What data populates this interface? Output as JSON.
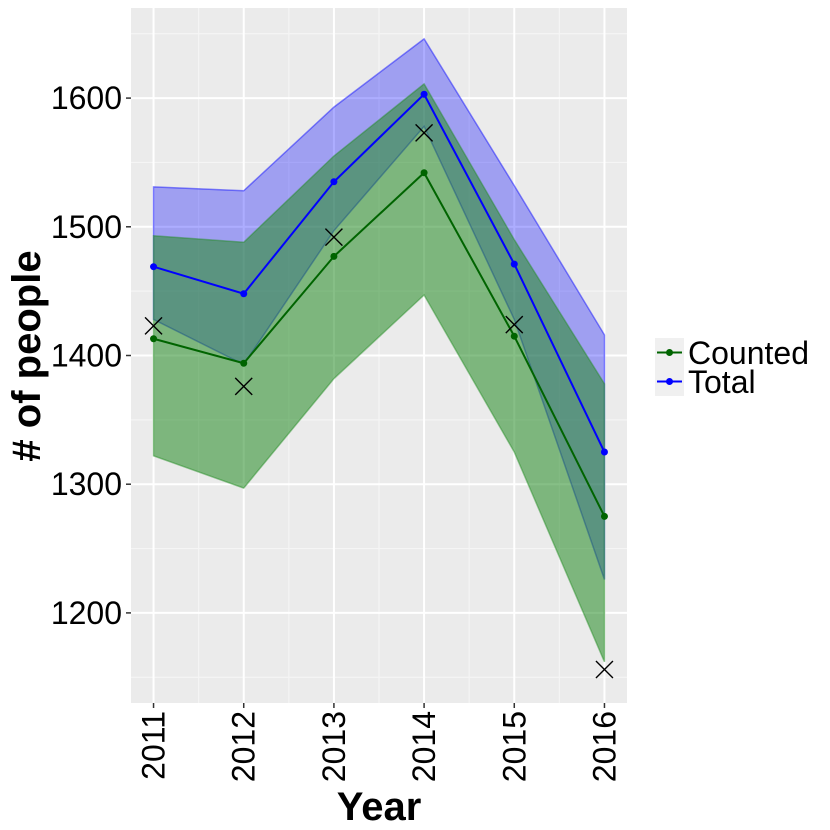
{
  "chart_data": {
    "type": "line",
    "title": "",
    "xlabel": "Year",
    "ylabel": "# of people",
    "x": [
      2011,
      2012,
      2013,
      2014,
      2015,
      2016
    ],
    "x_tick_labels": [
      "2011",
      "2012",
      "2013",
      "2014",
      "2015",
      "2016"
    ],
    "y_ticks": [
      1200,
      1300,
      1400,
      1500,
      1600
    ],
    "ylim": [
      1130,
      1670
    ],
    "grid": true,
    "legend_position": "right",
    "series": [
      {
        "name": "Counted",
        "color": "#006400",
        "values": [
          1413,
          1394,
          1477,
          1542,
          1415,
          1275
        ],
        "ribbon_lower": [
          1322,
          1297,
          1382,
          1447,
          1325,
          1162
        ],
        "ribbon_upper": [
          1493,
          1488,
          1555,
          1611,
          1490,
          1378
        ]
      },
      {
        "name": "Total",
        "color": "#0000ff",
        "values": [
          1469,
          1448,
          1535,
          1603,
          1471,
          1325
        ],
        "ribbon_lower": [
          1428,
          1393,
          1497,
          1578,
          1428,
          1226
        ],
        "ribbon_upper": [
          1531,
          1528,
          1593,
          1646,
          1532,
          1416
        ]
      }
    ],
    "observed": {
      "marker": "x",
      "values": [
        1423,
        1376,
        1492,
        1573,
        1424,
        1156
      ]
    }
  }
}
